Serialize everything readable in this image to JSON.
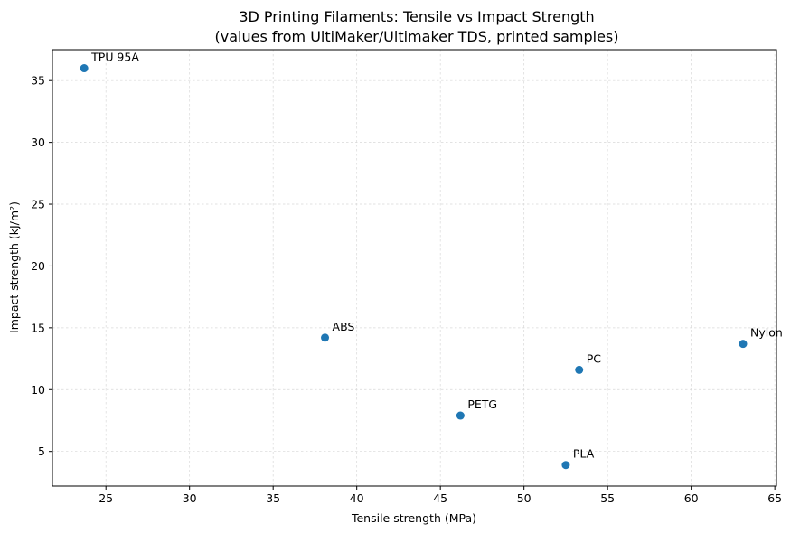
{
  "chart_data": {
    "type": "scatter",
    "title": "3D Printing Filaments: Tensile vs Impact Strength",
    "subtitle": "(values from UltiMaker/Ultimaker TDS, printed samples)",
    "xlabel": "Tensile strength (MPa)",
    "ylabel": "Impact strength (kJ/m²)",
    "xlim": [
      21.8,
      65.1
    ],
    "ylim": [
      2.2,
      37.5
    ],
    "xticks": [
      25,
      30,
      35,
      40,
      45,
      50,
      55,
      60,
      65
    ],
    "yticks": [
      5,
      10,
      15,
      20,
      25,
      30,
      35
    ],
    "grid": true,
    "marker_color": "#1f77b4",
    "points": [
      {
        "label": "TPU 95A",
        "x": 23.7,
        "y": 36.0
      },
      {
        "label": "ABS",
        "x": 38.1,
        "y": 14.2
      },
      {
        "label": "PETG",
        "x": 46.2,
        "y": 7.9
      },
      {
        "label": "PLA",
        "x": 52.5,
        "y": 3.9
      },
      {
        "label": "PC",
        "x": 53.3,
        "y": 11.6
      },
      {
        "label": "Nylon",
        "x": 63.1,
        "y": 13.7
      }
    ]
  }
}
